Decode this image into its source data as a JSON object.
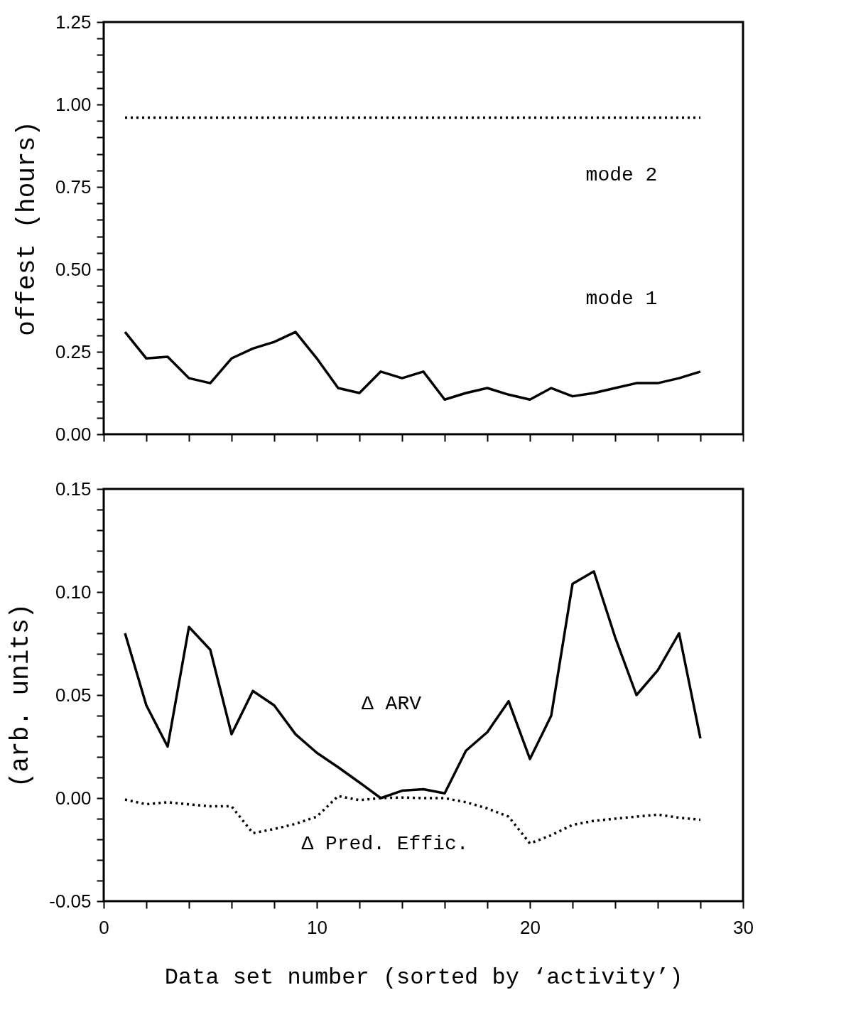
{
  "chart_data": [
    {
      "type": "line",
      "ylabel": "offest (hours)",
      "tick_labels": "y",
      "x": [
        1,
        2,
        3,
        4,
        5,
        6,
        7,
        8,
        9,
        10,
        11,
        12,
        13,
        14,
        15,
        16,
        17,
        18,
        19,
        20,
        21,
        22,
        23,
        24,
        25,
        26,
        27,
        28
      ],
      "series": [
        {
          "color": "#000000",
          "line_style": "solid",
          "values": [
            0.31,
            0.23,
            0.235,
            0.17,
            0.155,
            0.23,
            0.26,
            0.28,
            0.31,
            0.23,
            0.14,
            0.125,
            0.19,
            0.17,
            0.19,
            0.105,
            0.125,
            0.14,
            0.12,
            0.105,
            0.14,
            0.115,
            0.125,
            0.14,
            0.155,
            0.155,
            0.17,
            0.19
          ]
        },
        {
          "color": "#000000",
          "line_style": "dotted",
          "values": [
            0.96,
            0.96,
            0.96,
            0.96,
            0.96,
            0.96,
            0.96,
            0.96,
            0.96,
            0.96,
            0.96,
            0.96,
            0.96,
            0.96,
            0.96,
            0.96,
            0.96,
            0.96,
            0.96,
            0.96,
            0.96,
            0.96,
            0.96,
            0.96,
            0.96,
            0.96,
            0.96,
            0.96
          ]
        }
      ],
      "annotations": [
        "mode 2",
        "mode 1"
      ],
      "xlim": [
        0,
        30
      ],
      "ylim": [
        0,
        1.25
      ],
      "xticks": [
        {
          "value": 0,
          "label": null
        },
        {
          "value": 2,
          "label": null
        },
        {
          "value": 4,
          "label": null
        },
        {
          "value": 6,
          "label": null
        },
        {
          "value": 8,
          "label": null
        },
        {
          "value": 10,
          "label": null
        },
        {
          "value": 12,
          "label": null
        },
        {
          "value": 14,
          "label": null
        },
        {
          "value": 16,
          "label": null
        },
        {
          "value": 18,
          "label": null
        },
        {
          "value": 20,
          "label": null
        },
        {
          "value": 22,
          "label": null
        },
        {
          "value": 24,
          "label": null
        },
        {
          "value": 26,
          "label": null
        },
        {
          "value": 28,
          "label": null
        },
        {
          "value": 30,
          "label": null
        }
      ],
      "yticks": [
        {
          "value": 0,
          "label": "0.00"
        },
        {
          "value": 0.05,
          "label": null
        },
        {
          "value": 0.1,
          "label": null
        },
        {
          "value": 0.15,
          "label": null
        },
        {
          "value": 0.2,
          "label": null
        },
        {
          "value": 0.25,
          "label": "0.25"
        },
        {
          "value": 0.3,
          "label": null
        },
        {
          "value": 0.35,
          "label": null
        },
        {
          "value": 0.4,
          "label": null
        },
        {
          "value": 0.45,
          "label": null
        },
        {
          "value": 0.5,
          "label": "0.50"
        },
        {
          "value": 0.55,
          "label": null
        },
        {
          "value": 0.6,
          "label": null
        },
        {
          "value": 0.65,
          "label": null
        },
        {
          "value": 0.7,
          "label": null
        },
        {
          "value": 0.75,
          "label": "0.75"
        },
        {
          "value": 0.8,
          "label": null
        },
        {
          "value": 0.85,
          "label": null
        },
        {
          "value": 0.9,
          "label": null
        },
        {
          "value": 0.95,
          "label": null
        },
        {
          "value": 1,
          "label": "1.00"
        },
        {
          "value": 1.05,
          "label": null
        },
        {
          "value": 1.1,
          "label": null
        },
        {
          "value": 1.15,
          "label": null
        },
        {
          "value": 1.2,
          "label": null
        },
        {
          "value": 1.25,
          "label": "1.25"
        }
      ]
    },
    {
      "type": "line",
      "ylabel": "(arb. units)",
      "xlabel": "Data set number (sorted by ‘activity’)",
      "x": [
        1,
        2,
        3,
        4,
        5,
        6,
        7,
        8,
        9,
        10,
        11,
        12,
        13,
        14,
        15,
        16,
        17,
        18,
        19,
        20,
        21,
        22,
        23,
        24,
        25,
        26,
        27,
        28
      ],
      "series": [
        {
          "color": "#000000",
          "line_style": "solid",
          "values": [
            0.08,
            0.045,
            0.025,
            0.083,
            0.072,
            0.031,
            0.052,
            0.045,
            0.031,
            0.022,
            0.015,
            0.0076,
            0,
            0.0036,
            0.0043,
            0.0023,
            0.023,
            0.032,
            0.047,
            0.019,
            0.04,
            0.104,
            0.11,
            0.078,
            0.05,
            0.062,
            0.08,
            0.029
          ]
        },
        {
          "color": "#000000",
          "line_style": "dotted",
          "values": [
            -0.0007,
            -0.003,
            -0.002,
            -0.003,
            -0.004,
            -0.004,
            -0.017,
            -0.015,
            -0.0125,
            -0.009,
            0.001,
            -0.001,
            0,
            0.0003,
            0,
            0,
            -0.002,
            -0.005,
            -0.009,
            -0.022,
            -0.018,
            -0.013,
            -0.011,
            -0.01,
            -0.009,
            -0.008,
            -0.0095,
            -0.0105
          ]
        }
      ],
      "annotations": [
        "Δ ARV",
        "Δ Pred. Effic."
      ],
      "xlim": [
        0,
        30
      ],
      "ylim": [
        -0.05,
        0.15
      ],
      "xticks": [
        0,
        {
          "value": 2,
          "label": null
        },
        {
          "value": 4,
          "label": null
        },
        {
          "value": 6,
          "label": null
        },
        {
          "value": 8,
          "label": null
        },
        10,
        {
          "value": 12,
          "label": null
        },
        {
          "value": 14,
          "label": null
        },
        {
          "value": 16,
          "label": null
        },
        {
          "value": 18,
          "label": null
        },
        20,
        {
          "value": 22,
          "label": null
        },
        {
          "value": 24,
          "label": null
        },
        {
          "value": 26,
          "label": null
        },
        {
          "value": 28,
          "label": null
        },
        30
      ],
      "yticks": [
        {
          "value": -0.05,
          "label": "-0.05"
        },
        {
          "value": -0.04,
          "label": null
        },
        {
          "value": -0.03,
          "label": null
        },
        {
          "value": -0.02,
          "label": null
        },
        {
          "value": -0.01,
          "label": null
        },
        {
          "value": 0,
          "label": "0.00"
        },
        {
          "value": 0.01,
          "label": null
        },
        {
          "value": 0.02,
          "label": null
        },
        {
          "value": 0.03,
          "label": null
        },
        {
          "value": 0.04,
          "label": null
        },
        {
          "value": 0.05,
          "label": "0.05"
        },
        {
          "value": 0.06,
          "label": null
        },
        {
          "value": 0.07,
          "label": null
        },
        {
          "value": 0.08,
          "label": null
        },
        {
          "value": 0.09,
          "label": null
        },
        {
          "value": 0.1,
          "label": "0.10"
        },
        {
          "value": 0.11,
          "label": null
        },
        {
          "value": 0.12,
          "label": null
        },
        {
          "value": 0.13,
          "label": null
        },
        {
          "value": 0.14,
          "label": null
        },
        {
          "value": 0.15,
          "label": "0.15"
        }
      ]
    }
  ]
}
